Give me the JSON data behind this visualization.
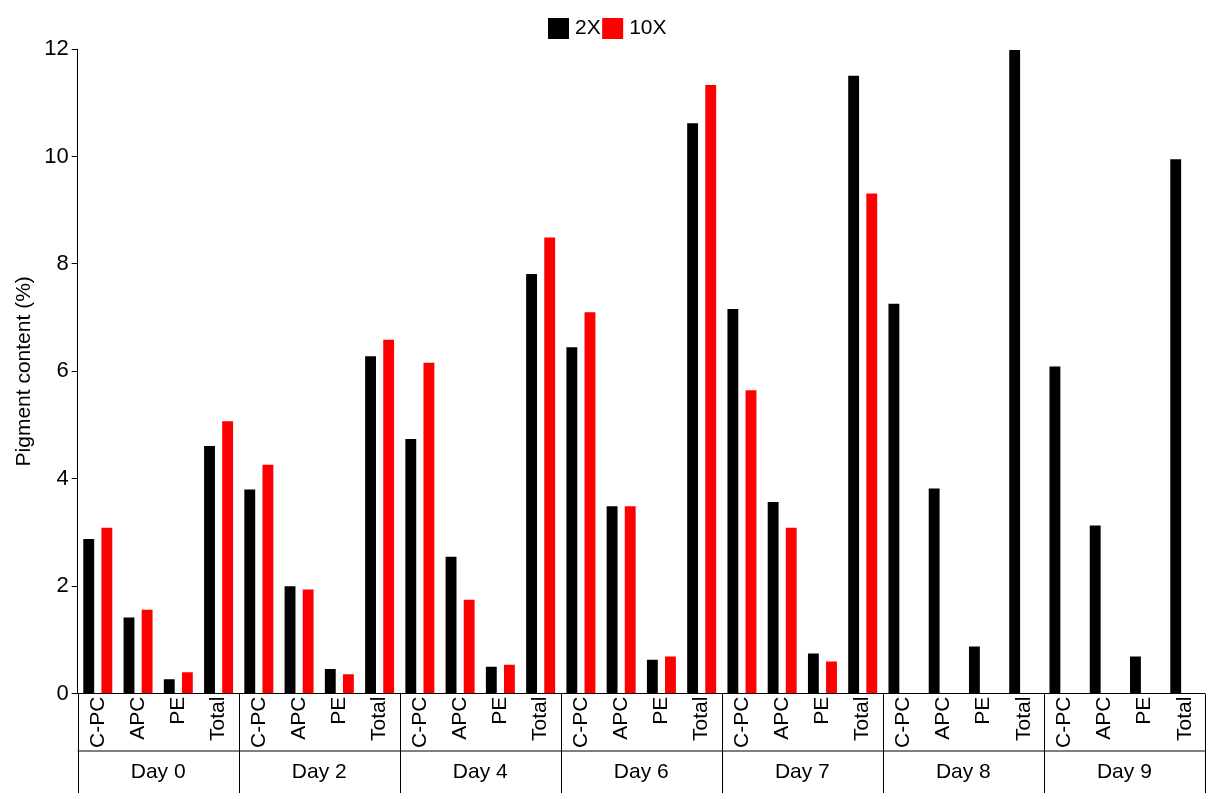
{
  "chart_data": {
    "type": "bar",
    "ylabel": "Pigment content (%)",
    "categories": [
      "C-PC",
      "APC",
      "PE",
      "Total",
      "C-PC",
      "APC",
      "PE",
      "Total",
      "C-PC",
      "APC",
      "PE",
      "Total",
      "C-PC",
      "APC",
      "PE",
      "Total",
      "C-PC",
      "APC",
      "PE",
      "Total",
      "C-PC",
      "APC",
      "PE",
      "Total",
      "C-PC",
      "APC",
      "PE",
      "Total"
    ],
    "series": [
      {
        "name": "2X",
        "color": "#000000",
        "values": [
          2.88,
          1.42,
          0.27,
          4.61,
          3.8,
          2.0,
          0.46,
          6.28,
          4.74,
          2.55,
          0.5,
          7.81,
          6.45,
          3.49,
          0.63,
          10.62,
          7.16,
          3.57,
          0.75,
          11.5,
          7.26,
          3.82,
          0.88,
          11.98,
          6.09,
          3.13,
          0.69,
          9.95
        ]
      },
      {
        "name": "10X",
        "color": "#ff0000",
        "values": [
          3.09,
          1.56,
          0.4,
          5.07,
          4.26,
          1.94,
          0.36,
          6.59,
          6.16,
          1.75,
          0.54,
          8.49,
          7.1,
          3.49,
          0.69,
          11.33,
          5.65,
          3.09,
          0.6,
          9.31,
          null,
          null,
          null,
          null,
          null,
          null,
          null,
          null
        ]
      }
    ],
    "annotations": [
      "Day 0",
      "Day 2",
      "Day 4",
      "Day 6",
      "Day 7",
      "Day 8",
      "Day 9"
    ],
    "ylim": [
      0,
      12
    ],
    "yticks": [
      0,
      2,
      4,
      6,
      8,
      10,
      12
    ],
    "grid": false,
    "legend": "top"
  }
}
